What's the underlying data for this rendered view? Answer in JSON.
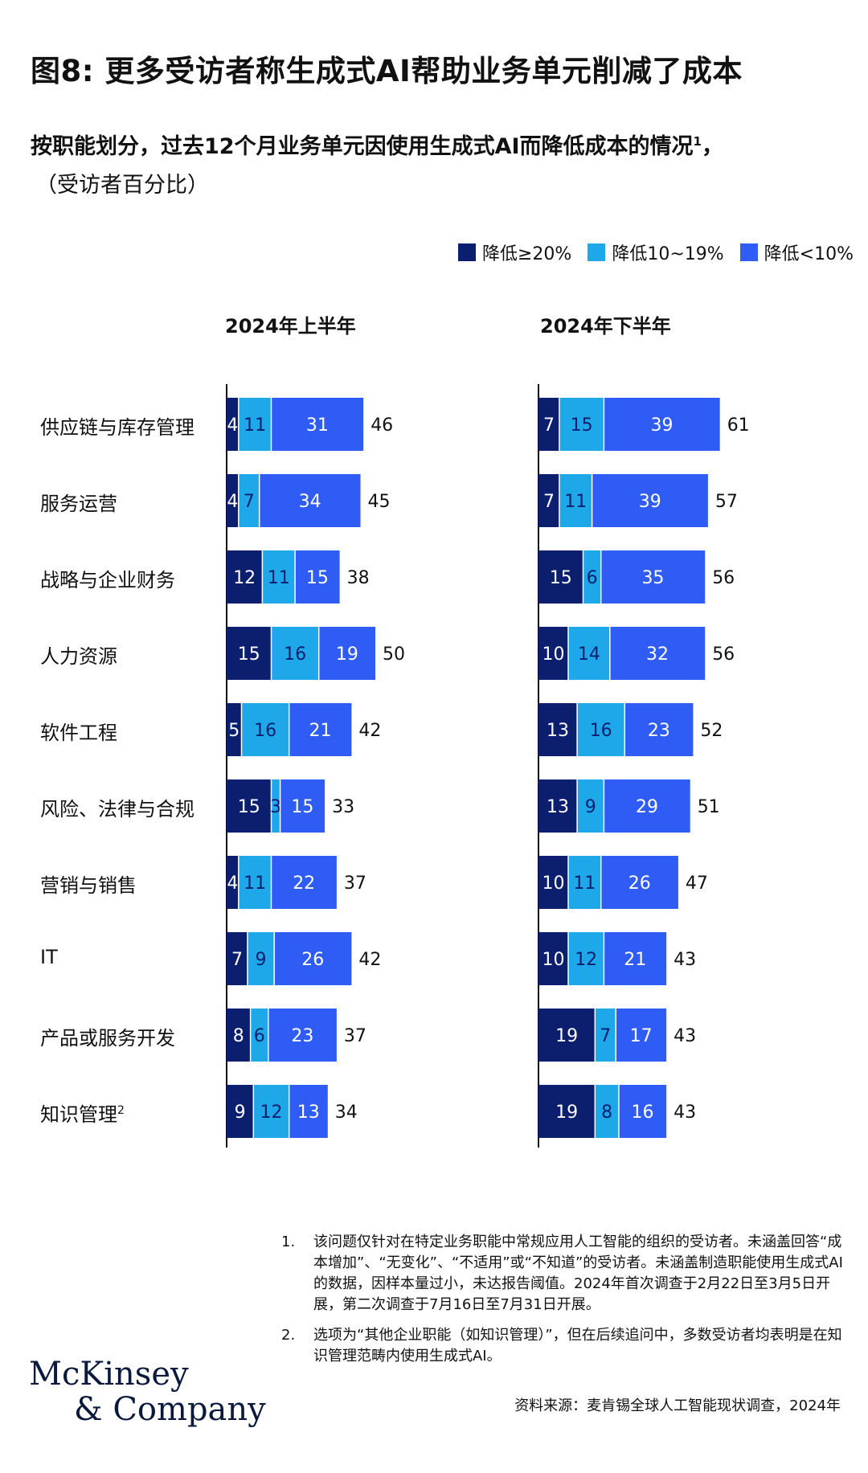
{
  "title": "图8: 更多受访者称生成式AI帮助业务单元削减了成本",
  "subtitle": "按职能划分，过去12个月业务单元因使用生成式AI而降低成本的情况",
  "subtitle_sup": "1",
  "subtitle_tail": "，",
  "subnote": "（受访者百分比）",
  "colors": {
    "dark": "#0b1f6e",
    "light": "#1ea8ea",
    "mid": "#2f5cf5",
    "axis": "#111111",
    "text_on_dark": "#ffffff",
    "text_on_light": "#0b1f6e"
  },
  "legend": [
    {
      "label": "降低≥20%",
      "color": "#0b1f6e"
    },
    {
      "label": "降低10~19%",
      "color": "#1ea8ea"
    },
    {
      "label": "降低<10%",
      "color": "#2f5cf5"
    }
  ],
  "chart_data": {
    "type": "bar",
    "orientation": "horizontal",
    "stacked": true,
    "categories": [
      "供应链与库存管理",
      "服务运营",
      "战略与企业财务",
      "人力资源",
      "软件工程",
      "风险、法律与合规",
      "营销与销售",
      "IT",
      "产品或服务开发",
      "知识管理"
    ],
    "category_sup": [
      "",
      "",
      "",
      "",
      "",
      "",
      "",
      "",
      "",
      "2"
    ],
    "panels": [
      {
        "title": "2024年上半年",
        "series": [
          {
            "name": "降低≥20%",
            "values": [
              4,
              4,
              12,
              15,
              5,
              15,
              4,
              7,
              8,
              9
            ]
          },
          {
            "name": "降低10~19%",
            "values": [
              11,
              7,
              11,
              16,
              16,
              3,
              11,
              9,
              6,
              12
            ]
          },
          {
            "name": "降低<10%",
            "values": [
              31,
              34,
              15,
              19,
              21,
              15,
              22,
              26,
              23,
              13
            ]
          }
        ],
        "totals": [
          46,
          45,
          38,
          50,
          42,
          33,
          37,
          42,
          37,
          34
        ]
      },
      {
        "title": "2024年下半年",
        "series": [
          {
            "name": "降低≥20%",
            "values": [
              7,
              7,
              15,
              10,
              13,
              13,
              10,
              10,
              19,
              19
            ]
          },
          {
            "name": "降低10~19%",
            "values": [
              15,
              11,
              6,
              14,
              16,
              9,
              11,
              12,
              7,
              8
            ]
          },
          {
            "name": "降低<10%",
            "values": [
              39,
              39,
              35,
              32,
              23,
              29,
              26,
              21,
              17,
              16
            ]
          }
        ],
        "totals": [
          61,
          57,
          56,
          56,
          52,
          51,
          47,
          43,
          43,
          43
        ]
      }
    ]
  },
  "notes": [
    {
      "num": "1.",
      "text": "该问题仅针对在特定业务职能中常规应用人工智能的组织的受访者。未涵盖回答“成本增加”、“无变化”、“不适用”或“不知道”的受访者。未涵盖制造职能使用生成式AI的数据，因样本量过小，未达报告阈值。2024年首次调查于2月22日至3月5日开展，第二次调查于7月16日至7月31日开展。"
    },
    {
      "num": "2.",
      "text": "选项为“其他企业职能（如知识管理）”，但在后续追问中，多数受访者均表明是在知识管理范畴内使用生成式AI。"
    }
  ],
  "source": "资料来源：麦肯锡全球人工智能现状调查，2024年",
  "logo": {
    "line1": "McKinsey",
    "line2": "& Company"
  }
}
